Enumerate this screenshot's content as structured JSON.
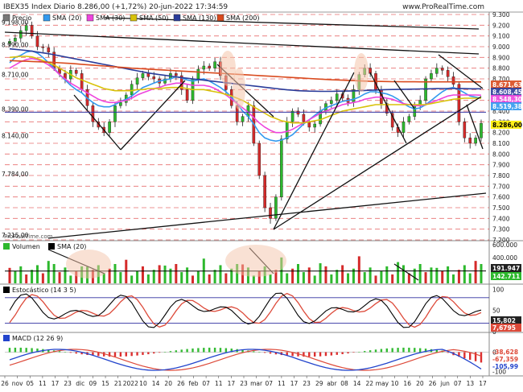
{
  "header": {
    "title": "IBEX35 Index Diario 8.286,00 (+1,72%) 20-jun-2022 17:34:59",
    "website": "www.ProRealTime.com",
    "watermark": "ProRealTime.com"
  },
  "colors": {
    "up": "#2db82d",
    "down": "#d42a2a",
    "bear_fill": "#cc2a2a",
    "sma20": "#3399ee",
    "sma30": "#ee44dd",
    "sma50": "#d8c20a",
    "sma130": "#2a3c9a",
    "sma200": "#d94a1e",
    "vol_sma": "#000000",
    "stoch_k": "#000000",
    "stoch_d": "#dd4a3a",
    "macd_line": "#2244cc",
    "signal_line": "#dd4a3a",
    "hist_pos": "#33bb33",
    "hist_neg": "#dd2e2e",
    "grid_red": "#e04040",
    "level_line": "#3030a0",
    "ellipse": "#f4c4aa"
  },
  "panels": {
    "price": {
      "legend": [
        "Precio",
        "SMA (20)",
        "SMA (30)",
        "SMA (50)",
        "SMA (130)",
        "SMA (200)"
      ],
      "left_labels": [
        "9.198,00",
        "8.990,00",
        "8.710,00",
        "8.390,00",
        "8.140,00",
        "7.784,00",
        "7.215,00"
      ],
      "axis_ticks": [
        "9.300",
        "9.200",
        "9.100",
        "9.000",
        "8.900",
        "8.800",
        "8.700",
        "8.600",
        "8.500",
        "8.400",
        "8.300",
        "8.200",
        "8.100",
        "8.000",
        "7.900",
        "7.800",
        "7.700",
        "7.600",
        "7.500",
        "7.400",
        "7.300",
        "7.200"
      ],
      "badges": [
        {
          "text": "8.671,63",
          "color": "#d94a1e"
        },
        {
          "text": "8.608,45",
          "color": "#2a3c9a"
        },
        {
          "text": "8.548,30",
          "color": "#ee44dd"
        },
        {
          "text": "8.519,38",
          "color": "#3399ee"
        },
        {
          "text": "8.286,00",
          "color": "#ffee00"
        }
      ]
    },
    "volume": {
      "legend": [
        "Volumen",
        "SMA (20)"
      ],
      "axis_ticks": [
        "600.000",
        "400.000",
        "200.000"
      ],
      "badges": [
        {
          "text": "191.947",
          "color": "#222222"
        },
        {
          "text": "142.711",
          "color": "#2db82d"
        }
      ]
    },
    "stochastic": {
      "legend": [
        "Estocástico (14 3 5)"
      ],
      "axis_ticks": [
        "100",
        "50",
        "0"
      ],
      "badges": [
        {
          "text": "15,802",
          "color": "#222222"
        },
        {
          "text": "7,6795",
          "color": "#dd4a3a"
        }
      ]
    },
    "macd": {
      "legend": [
        "MACD (12 26 9)"
      ],
      "axis_ticks": [
        "0",
        "-100"
      ],
      "badges": [
        {
          "text": "-38,628",
          "color": "#dd4a3a"
        },
        {
          "text": "-67,359",
          "color": "#dd4a3a"
        },
        {
          "text": "-105,99",
          "color": "#2244cc"
        }
      ]
    }
  },
  "x_axis_labels": [
    "26",
    "nov",
    "05",
    "11",
    "17",
    "23",
    "dic",
    "09",
    "15",
    "21",
    "2022",
    "10",
    "14",
    "20",
    "26",
    "feb",
    "07",
    "11",
    "17",
    "23",
    "mar",
    "07",
    "11",
    "17",
    "23",
    "29",
    "abr",
    "08",
    "14",
    "22",
    "may",
    "10",
    "16",
    "20",
    "26",
    "jun",
    "07",
    "13",
    "17"
  ],
  "chart_data": {
    "type": "line",
    "title": "IBEX35 Index Diario 8.286,00 (+1,72%) 20-jun-2022 17:34:59",
    "x_range": [
      "26-oct-2021",
      "20-jun-2022"
    ],
    "y_range": [
      7200,
      9300
    ],
    "series": [
      {
        "name": "Precio",
        "values": [
          9050,
          9080,
          9150,
          9198,
          9100,
          9000,
          8990,
          8950,
          8800,
          8750,
          8700,
          8780,
          8750,
          8600,
          8450,
          8300,
          8250,
          8200,
          8300,
          8450,
          8480,
          8550,
          8650,
          8710,
          8750,
          8720,
          8700,
          8660,
          8700,
          8750,
          8730,
          8600,
          8500,
          8700,
          8790,
          8820,
          8800,
          8860,
          8730,
          8600,
          8450,
          8300,
          8350,
          8450,
          8100,
          7800,
          7500,
          7400,
          7600,
          8140,
          8300,
          8400,
          8370,
          8300,
          8250,
          8280,
          8400,
          8470,
          8500,
          8560,
          8520,
          8480,
          8600,
          8740,
          8800,
          8750,
          8600,
          8470,
          8380,
          8250,
          8200,
          8300,
          8350,
          8450,
          8500,
          8700,
          8750,
          8800,
          8780,
          8720,
          8650,
          8300,
          8150,
          8100,
          8150,
          8286
        ]
      },
      {
        "name": "SMA (20)",
        "values": [
          8850,
          8900,
          8920,
          8950,
          8960,
          8940,
          8900,
          8850,
          8800,
          8740,
          8690,
          8640,
          8600,
          8570,
          8520,
          8480,
          8450,
          8440,
          8440,
          8460,
          8490,
          8510,
          8540,
          8580,
          8620,
          8640,
          8660,
          8680,
          8690,
          8700,
          8720,
          8710,
          8690,
          8680,
          8690,
          8700,
          8680,
          8650,
          8620,
          8580,
          8530,
          8470,
          8400,
          8350,
          8280,
          8200,
          8150,
          8130,
          8120,
          8130,
          8150,
          8180,
          8230,
          8280,
          8320,
          8360,
          8400,
          8430,
          8450,
          8470,
          8490,
          8500,
          8510,
          8530,
          8560,
          8580,
          8580,
          8570,
          8560,
          8540,
          8510,
          8470,
          8440,
          8420,
          8430,
          8460,
          8500,
          8540,
          8580,
          8610,
          8620,
          8600,
          8570,
          8540,
          8530,
          8519
        ]
      },
      {
        "name": "SMA (30)",
        "values": [
          8800,
          8830,
          8860,
          8880,
          8890,
          8880,
          8860,
          8830,
          8790,
          8740,
          8700,
          8660,
          8630,
          8600,
          8570,
          8540,
          8510,
          8490,
          8480,
          8480,
          8490,
          8500,
          8520,
          8550,
          8570,
          8590,
          8610,
          8620,
          8640,
          8650,
          8660,
          8660,
          8650,
          8640,
          8640,
          8640,
          8630,
          8610,
          8580,
          8550,
          8510,
          8470,
          8430,
          8390,
          8340,
          8290,
          8250,
          8220,
          8200,
          8200,
          8210,
          8230,
          8260,
          8290,
          8320,
          8350,
          8380,
          8400,
          8420,
          8440,
          8460,
          8470,
          8480,
          8490,
          8510,
          8520,
          8530,
          8530,
          8520,
          8510,
          8490,
          8470,
          8460,
          8450,
          8450,
          8460,
          8480,
          8500,
          8520,
          8540,
          8550,
          8550,
          8550,
          8550,
          8550,
          8548
        ]
      },
      {
        "name": "SMA (50)",
        "values": [
          8900,
          8905,
          8910,
          8910,
          8905,
          8890,
          8870,
          8850,
          8830,
          8800,
          8770,
          8740,
          8710,
          8690,
          8670,
          8650,
          8630,
          8610,
          8600,
          8590,
          8590,
          8590,
          8590,
          8600,
          8600,
          8610,
          8610,
          8610,
          8615,
          8620,
          8620,
          8620,
          8610,
          8600,
          8600,
          8600,
          8590,
          8580,
          8570,
          8555,
          8540,
          8520,
          8500,
          8470,
          8440,
          8410,
          8380,
          8350,
          8330,
          8310,
          8300,
          8290,
          8290,
          8290,
          8300,
          8310,
          8320,
          8340,
          8360,
          8380,
          8400,
          8410,
          8420,
          8430,
          8440,
          8450,
          8460,
          8460,
          8460,
          8460,
          8460,
          8460,
          8460,
          8460,
          8460,
          8460,
          8470,
          8480,
          8490,
          8500,
          8510,
          8515,
          8520,
          8520,
          8520,
          8520
        ]
      },
      {
        "name": "SMA (130)",
        "values": [
          8980,
          8975,
          8970,
          8965,
          8958,
          8950,
          8942,
          8935,
          8925,
          8915,
          8905,
          8895,
          8885,
          8875,
          8865,
          8855,
          8845,
          8835,
          8825,
          8815,
          8805,
          8795,
          8785,
          8775,
          8765,
          8755,
          8747,
          8740,
          8733,
          8726,
          8719,
          8712,
          8706,
          8700,
          8694,
          8688,
          8682,
          8676,
          8670,
          8664,
          8658,
          8652,
          8646,
          8640,
          8634,
          8628,
          8622,
          8616,
          8610,
          8604,
          8598,
          8594,
          8590,
          8588,
          8586,
          8585,
          8584,
          8584,
          8584,
          8585,
          8586,
          8587,
          8588,
          8590,
          8592,
          8594,
          8596,
          8598,
          8600,
          8601,
          8602,
          8603,
          8604,
          8605,
          8606,
          8607,
          8608,
          8609,
          8610,
          8610,
          8610,
          8609,
          8609,
          8608,
          8608,
          8608
        ]
      },
      {
        "name": "SMA (200)",
        "values": [
          8870,
          8868,
          8866,
          8864,
          8862,
          8860,
          8858,
          8856,
          8853,
          8850,
          8847,
          8844,
          8840,
          8836,
          8832,
          8828,
          8824,
          8820,
          8816,
          8812,
          8808,
          8804,
          8800,
          8797,
          8794,
          8791,
          8788,
          8785,
          8782,
          8779,
          8776,
          8773,
          8770,
          8767,
          8764,
          8761,
          8758,
          8755,
          8752,
          8749,
          8746,
          8743,
          8740,
          8737,
          8734,
          8731,
          8728,
          8725,
          8722,
          8719,
          8716,
          8713,
          8710,
          8707,
          8704,
          8701,
          8698,
          8695,
          8692,
          8690,
          8688,
          8686,
          8684,
          8682,
          8680,
          8678,
          8677,
          8676,
          8675,
          8674,
          8674,
          8673,
          8673,
          8673,
          8672,
          8672,
          8672,
          8672,
          8672,
          8672,
          8672,
          8672,
          8672,
          8672,
          8672,
          8671.63
        ]
      }
    ]
  }
}
